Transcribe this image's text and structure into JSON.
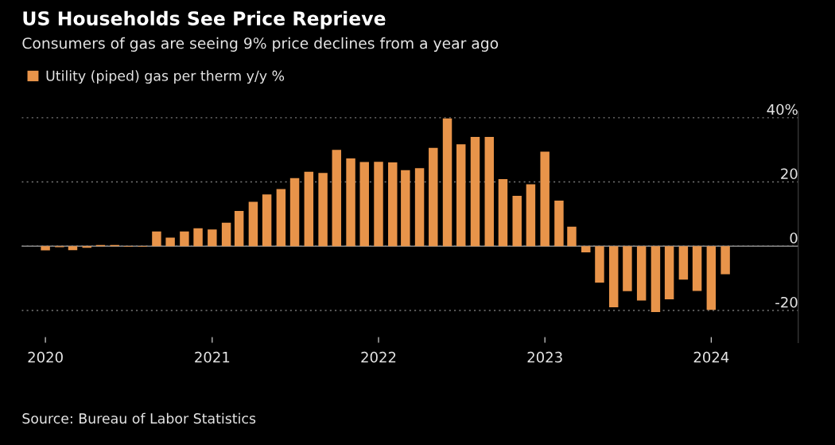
{
  "chart_data": {
    "type": "bar",
    "title": "US Households See Price Reprieve",
    "subtitle": "Consumers of gas are seeing 9% price declines from a year ago",
    "x": [
      "2020-01",
      "2020-02",
      "2020-03",
      "2020-04",
      "2020-05",
      "2020-06",
      "2020-07",
      "2020-08",
      "2020-09",
      "2020-10",
      "2020-11",
      "2020-12",
      "2021-01",
      "2021-02",
      "2021-03",
      "2021-04",
      "2021-05",
      "2021-06",
      "2021-07",
      "2021-08",
      "2021-09",
      "2021-10",
      "2021-11",
      "2021-12",
      "2022-01",
      "2022-02",
      "2022-03",
      "2022-04",
      "2022-05",
      "2022-06",
      "2022-07",
      "2022-08",
      "2022-09",
      "2022-10",
      "2022-11",
      "2022-12",
      "2023-01",
      "2023-02",
      "2023-03",
      "2023-04",
      "2023-05",
      "2023-06",
      "2023-07",
      "2023-08",
      "2023-09",
      "2023-10",
      "2023-11",
      "2023-12",
      "2024-01",
      "2024-02"
    ],
    "series": [
      {
        "name": "Utility (piped) gas per therm y/y %",
        "color": "#e8944a",
        "values": [
          -1.3,
          -0.3,
          -1.2,
          -0.5,
          0.4,
          0.4,
          -0.2,
          -0.2,
          4.6,
          2.7,
          4.6,
          5.6,
          5.2,
          7.3,
          11.0,
          13.8,
          16.1,
          17.8,
          21.2,
          23.2,
          22.8,
          30.0,
          27.3,
          26.2,
          26.3,
          26.1,
          23.7,
          24.3,
          30.6,
          39.8,
          31.7,
          34.0,
          34.0,
          20.9,
          15.7,
          19.3,
          29.4,
          14.2,
          6.1,
          -1.9,
          -11.3,
          -19.0,
          -14.0,
          -16.9,
          -20.5,
          -16.5,
          -10.4,
          -13.9,
          -19.8,
          -8.7
        ]
      }
    ],
    "xlim": [
      "2019-11-10",
      "2024-07-10"
    ],
    "xticks": [
      "2020",
      "2021",
      "2022",
      "2023",
      "2024"
    ],
    "ylim": [
      -30,
      42
    ],
    "yticks": [
      {
        "value": 40,
        "label": "40%"
      },
      20,
      0,
      -20
    ],
    "grid": "y",
    "legend": "top left",
    "annotations": [
      "Source: Bureau of Labor Statistics"
    ]
  }
}
